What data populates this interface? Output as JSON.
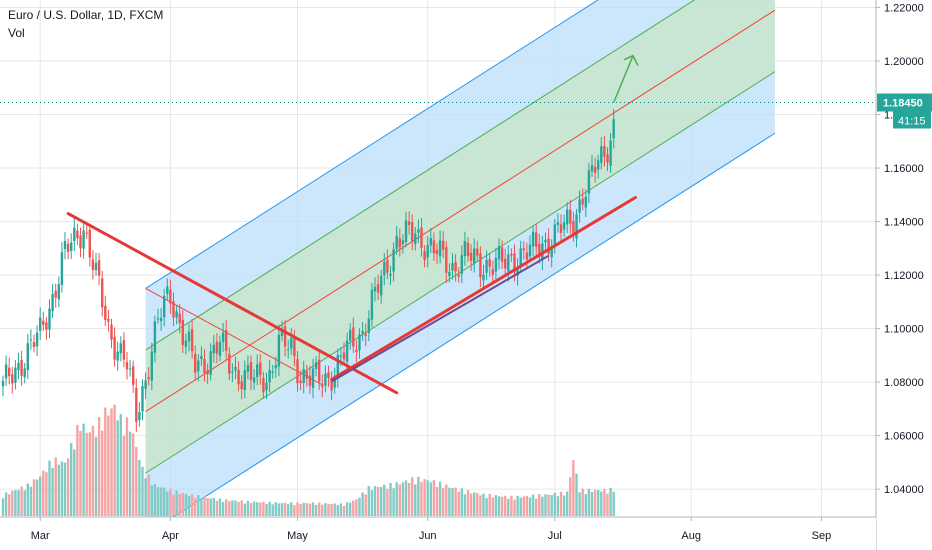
{
  "chart_header": {
    "symbol_line": "Euro / U.S. Dollar, 1D, FXCM",
    "volume_label": "Vol"
  },
  "colors": {
    "up": "#26a69a",
    "down": "#ef5350",
    "up_vol": "#80cbc4",
    "down_vol": "#f5a3a3",
    "price_badge": "#26a69a",
    "channel_outer": "#2196f3",
    "channel_fill_outer": "#bbdefb",
    "channel_inner": "#4caf50",
    "channel_fill_inner": "#c8e6c9",
    "median": "#f44336",
    "trendline": "#e53935",
    "support": "#6a4c93",
    "arrow": "#4caf50",
    "grid": "#e6e6e6",
    "dotted": "#00897b"
  },
  "chart_data": {
    "type": "candlestick",
    "title": "Euro / U.S. Dollar, 1D, FXCM",
    "xlabel": "",
    "ylabel": "",
    "ylim": [
      1.0296,
      1.2228
    ],
    "x_ticks": [
      "Mar",
      "Apr",
      "May",
      "Jun",
      "Jul",
      "Aug",
      "Sep"
    ],
    "y_ticks": [
      "1.04000",
      "1.06000",
      "1.08000",
      "1.10000",
      "1.12000",
      "1.14000",
      "1.16000",
      "1.18000",
      "1.20000",
      "1.22000"
    ],
    "y_tick_values": [
      1.04,
      1.06,
      1.08,
      1.1,
      1.12,
      1.14,
      1.16,
      1.18,
      1.2,
      1.22
    ],
    "last_price": "1.18450",
    "last_price_value": 1.1845,
    "countdown": "41:15",
    "grid": true,
    "close_anchors": [
      [
        0,
        1.078
      ],
      [
        6,
        1.088
      ],
      [
        12,
        1.098
      ],
      [
        16,
        1.112
      ],
      [
        20,
        1.128
      ],
      [
        26,
        1.1385
      ],
      [
        29,
        1.124
      ],
      [
        34,
        1.1
      ],
      [
        40,
        1.086
      ],
      [
        43,
        1.068
      ],
      [
        46,
        1.082
      ],
      [
        50,
        1.102
      ],
      [
        53,
        1.112
      ],
      [
        54,
        1.1135
      ],
      [
        58,
        1.098
      ],
      [
        62,
        1.086
      ],
      [
        66,
        1.089
      ],
      [
        70,
        1.094
      ],
      [
        74,
        1.085
      ],
      [
        78,
        1.082
      ],
      [
        82,
        1.081
      ],
      [
        86,
        1.083
      ],
      [
        89,
        1.094
      ],
      [
        93,
        1.093
      ],
      [
        96,
        1.083
      ],
      [
        99,
        1.081
      ],
      [
        102,
        1.081
      ],
      [
        105,
        1.082
      ],
      [
        108,
        1.086
      ],
      [
        112,
        1.094
      ],
      [
        116,
        1.099
      ],
      [
        120,
        1.112
      ],
      [
        124,
        1.124
      ],
      [
        127,
        1.133
      ],
      [
        130,
        1.134
      ],
      [
        133,
        1.136
      ],
      [
        137,
        1.131
      ],
      [
        141,
        1.127
      ],
      [
        145,
        1.123
      ],
      [
        149,
        1.127
      ],
      [
        153,
        1.125
      ],
      [
        157,
        1.124
      ],
      [
        161,
        1.124
      ],
      [
        165,
        1.127
      ],
      [
        169,
        1.128
      ],
      [
        173,
        1.131
      ],
      [
        177,
        1.134
      ],
      [
        181,
        1.138
      ],
      [
        184,
        1.141
      ],
      [
        187,
        1.15
      ],
      [
        190,
        1.156
      ],
      [
        192,
        1.163
      ],
      [
        194,
        1.166
      ],
      [
        196,
        1.172
      ],
      [
        197,
        1.1755
      ]
    ],
    "volume_anchors": [
      [
        0,
        0.18
      ],
      [
        8,
        0.26
      ],
      [
        12,
        0.34
      ],
      [
        16,
        0.48
      ],
      [
        20,
        0.45
      ],
      [
        25,
        0.8
      ],
      [
        27,
        0.72
      ],
      [
        30,
        0.75
      ],
      [
        33,
        0.88
      ],
      [
        36,
        0.93
      ],
      [
        38,
        0.82
      ],
      [
        41,
        0.78
      ],
      [
        45,
        0.4
      ],
      [
        49,
        0.26
      ],
      [
        54,
        0.22
      ],
      [
        60,
        0.18
      ],
      [
        70,
        0.14
      ],
      [
        80,
        0.12
      ],
      [
        90,
        0.11
      ],
      [
        100,
        0.11
      ],
      [
        110,
        0.1
      ],
      [
        114,
        0.14
      ],
      [
        118,
        0.24
      ],
      [
        124,
        0.26
      ],
      [
        128,
        0.28
      ],
      [
        133,
        0.32
      ],
      [
        138,
        0.3
      ],
      [
        145,
        0.24
      ],
      [
        155,
        0.18
      ],
      [
        165,
        0.16
      ],
      [
        175,
        0.18
      ],
      [
        182,
        0.2
      ],
      [
        184,
        0.48
      ],
      [
        186,
        0.22
      ],
      [
        195,
        0.22
      ],
      [
        197,
        0.23
      ]
    ],
    "channel": {
      "median_from": [
        46,
        1.069
      ],
      "median_to": [
        249,
        1.219
      ],
      "upper_outer_offset": 0.046,
      "upper_inner_offset": 0.023,
      "lower_inner_offset": -0.023,
      "lower_outer_offset": -0.046,
      "pivot_high": [
        46,
        1.115
      ],
      "pivot_low": [
        103,
        1.079
      ],
      "draw_from": 46,
      "draw_to": 249
    },
    "trend_lines": [
      {
        "role": "resistance",
        "from": [
          21,
          1.143
        ],
        "to": [
          127,
          1.076
        ]
      },
      {
        "role": "support",
        "from": [
          106,
          1.081
        ],
        "to": [
          204,
          1.149
        ]
      }
    ],
    "arrow": {
      "from": [
        197,
        1.1845
      ],
      "to": [
        200,
        1.202
      ]
    }
  }
}
